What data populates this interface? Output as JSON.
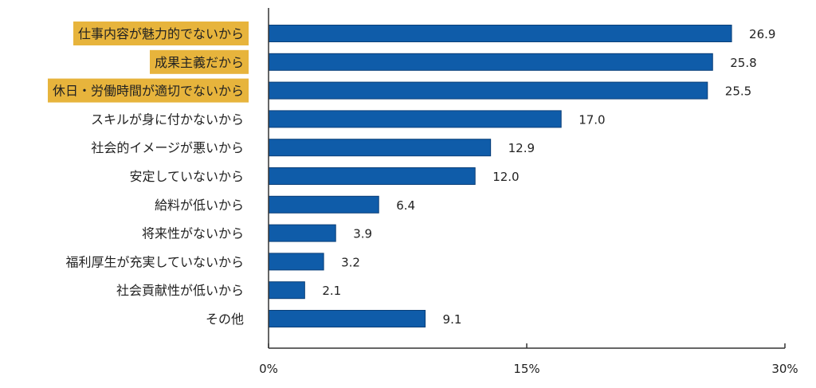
{
  "chart_data": {
    "type": "bar",
    "orientation": "horizontal",
    "categories": [
      "仕事内容が魅力的でないから",
      "成果主義だから",
      "休日・労働時間が適切でないから",
      "スキルが身に付かないから",
      "社会的イメージが悪いから",
      "安定していないから",
      "給料が低いから",
      "将来性がないから",
      "福利厚生が充実していないから",
      "社会貢献性が低いから",
      "その他"
    ],
    "values": [
      26.9,
      25.8,
      25.5,
      17.0,
      12.9,
      12.0,
      6.4,
      3.9,
      3.2,
      2.1,
      9.1
    ],
    "value_labels": [
      "26.9",
      "25.8",
      "25.5",
      "17.0",
      "12.9",
      "12.0",
      "6.4",
      "3.9",
      "3.2",
      "2.1",
      "9.1"
    ],
    "highlighted": [
      true,
      true,
      true,
      false,
      false,
      false,
      false,
      false,
      false,
      false,
      false
    ],
    "xlim": [
      0,
      30
    ],
    "x_ticks": [
      0,
      15,
      30
    ],
    "x_tick_labels": [
      "0%",
      "15%",
      "30%"
    ],
    "grid": false,
    "title": "",
    "xlabel": "",
    "ylabel": ""
  },
  "colors": {
    "bar": "#0f5ca9",
    "bar_stroke": "#0a3f78",
    "highlight_bg": "#e7b43c",
    "axis": "#333333",
    "text": "#222222"
  }
}
